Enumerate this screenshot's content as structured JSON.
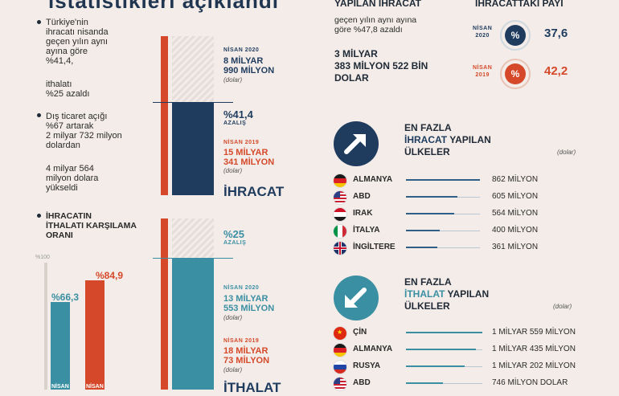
{
  "header": {
    "title": "istatistikleri açıklandı"
  },
  "left": {
    "p1": [
      "Türkiye'nin",
      "ihracatı nisanda",
      "geçen yılın aynı",
      "ayına göre",
      "%41,4,"
    ],
    "p2": [
      "ithalatı",
      "%25 azaldı"
    ],
    "p3": [
      "Dış ticaret açığı",
      "%67 artarak",
      "2 milyar 732 milyon",
      "dolardan"
    ],
    "p4": [
      "4 milyar 564",
      "milyon dolara",
      "yükseldi"
    ],
    "coverage_title": [
      "İHRACATIN",
      "İTHALATI KARŞILAMA",
      "ORANI"
    ],
    "scale_label": "%100",
    "coverage_2020": "%66,3",
    "coverage_2019": "%84,9",
    "bottom_lbl_a": "NİSAN",
    "bottom_lbl_b": "NİSAN"
  },
  "export_block": {
    "n2020_label": "NİSAN 2020",
    "n2020_value": [
      "8 MİLYAR",
      "990 MİLYON"
    ],
    "dolar": "(dolar)",
    "change_pct": "%41,4",
    "change_word": "AZALIŞ",
    "n2019_label": "NİSAN 2019",
    "n2019_value": [
      "15 MİLYAR",
      "341 MİLYON"
    ],
    "title": "İHRACAT"
  },
  "import_block": {
    "change_pct": "%25",
    "change_word": "AZALIŞ",
    "n2020_label": "NİSAN 2020",
    "n2020_value": [
      "13 MİLYAR",
      "553 MİLYON"
    ],
    "dolar": "(dolar)",
    "n2019_label": "NİSAN 2019",
    "n2019_value": [
      "18 MİLYAR",
      "73 MİLYON"
    ],
    "title": "İTHALAT"
  },
  "right_top": {
    "heading": "YAPILAN İHRACAT",
    "sub": [
      "geçen yılın aynı ayına",
      "göre %47,8 azaldı"
    ],
    "amount": [
      "3 MİLYAR",
      "383 MİLYON 522 BİN",
      "DOLAR"
    ],
    "share_heading": "İHRACATTAKİ PAYI",
    "share_2020_label": [
      "NİSAN",
      "2020"
    ],
    "share_2020_value": "37,6",
    "share_2019_label": [
      "NİSAN",
      "2019"
    ],
    "share_2019_value": "42,2",
    "pct_symbol": "%"
  },
  "export_countries": {
    "title_a": "EN FAZLA",
    "title_b1": "İHRACAT",
    "title_b2": " YAPILAN",
    "title_c": "ÜLKELER",
    "unit": "(dolar)",
    "rows": [
      {
        "name": "ALMANYA",
        "value": "862 MİLYON",
        "fraction": 1.0
      },
      {
        "name": "ABD",
        "value": "605 MİLYON",
        "fraction": 0.7
      },
      {
        "name": "IRAK",
        "value": "564 MİLYON",
        "fraction": 0.65
      },
      {
        "name": "İTALYA",
        "value": "400 MİLYON",
        "fraction": 0.46
      },
      {
        "name": "İNGİLTERE",
        "value": "361 MİLYON",
        "fraction": 0.42
      }
    ]
  },
  "import_countries": {
    "title_a": "EN FAZLA",
    "title_b1": "İTHALAT",
    "title_b2": " YAPILAN",
    "title_c": "ÜLKELER",
    "unit": "(dolar)",
    "rows": [
      {
        "name": "ÇİN",
        "value": "1 MİLYAR 559 MİLYON",
        "fraction": 1.0
      },
      {
        "name": "ALMANYA",
        "value": "1  MİLYAR 435 MİLYON",
        "fraction": 0.92
      },
      {
        "name": "RUSYA",
        "value": "1 MİLYAR 202 MİLYON",
        "fraction": 0.77
      },
      {
        "name": "ABD",
        "value": "746 MİLYON DOLAR",
        "fraction": 0.48
      }
    ]
  },
  "colors": {
    "navy": "#1f3c5f",
    "orange": "#d5492a",
    "teal": "#3a8fa3",
    "cream": "#f3ece8"
  }
}
